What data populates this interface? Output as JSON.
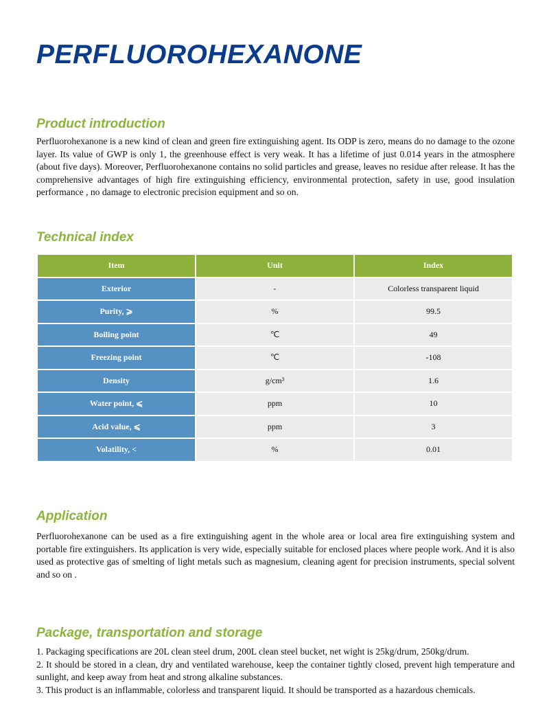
{
  "title": "PERFLUOROHEXANONE",
  "intro": {
    "heading": "Product introduction",
    "text": "Perfluorohexanone is a new kind of clean and green fire extinguishing agent. Its ODP is zero, means do no damage to the ozone layer. Its value of GWP is only 1, the greenhouse effect is very weak. It has a lifetime of just 0.014 years in the atmosphere (about five days). Moreover, Perfluorohexanone contains no solid particles and grease, leaves no residue after release. It has the comprehensive advantages of high fire extinguishing efficiency, environmental protection, safety in use, good insulation performance , no damage to electronic precision equipment and so on."
  },
  "technical": {
    "heading": "Technical index",
    "columns": [
      "Item",
      "Unit",
      "Index"
    ],
    "rows": [
      {
        "item": "Exterior",
        "unit": "-",
        "index": "Colorless transparent liquid"
      },
      {
        "item": "Purity, ⩾",
        "unit": "%",
        "index": "99.5"
      },
      {
        "item": "Boiling point",
        "unit": "℃",
        "index": "49"
      },
      {
        "item": "Freezing point",
        "unit": "℃",
        "index": "-108"
      },
      {
        "item": "Density",
        "unit": "g/cm³",
        "index": "1.6"
      },
      {
        "item": "Water point, ⩽",
        "unit": "ppm",
        "index": "10"
      },
      {
        "item": "Acid value, ⩽",
        "unit": "ppm",
        "index": "3"
      },
      {
        "item": "Volatility, <",
        "unit": "%",
        "index": "0.01"
      }
    ]
  },
  "application": {
    "heading": "Application",
    "text": "Perfluorohexanone can be used as a fire extinguishing agent in the whole area or local area fire extinguishing system and portable fire extinguishers. Its application is very wide, especially suitable for enclosed places where people work. And it is also used as protective gas of smelting of light metals such as magnesium, cleaning agent for precision instruments, special solvent and so on ."
  },
  "package": {
    "heading": "Package, transportation and storage",
    "items": [
      "1. Packaging specifications are 20L clean steel drum, 200L clean steel bucket, net wight is 25kg/drum, 250kg/drum.",
      "2. It should be stored in a clean, dry and ventilated warehouse, keep the container tightly closed, prevent high temperature and sunlight, and keep away from heat and strong alkaline substances.",
      "3. This product is an inflammable, colorless and transparent liquid. It should be transported as a hazardous chemicals."
    ]
  }
}
